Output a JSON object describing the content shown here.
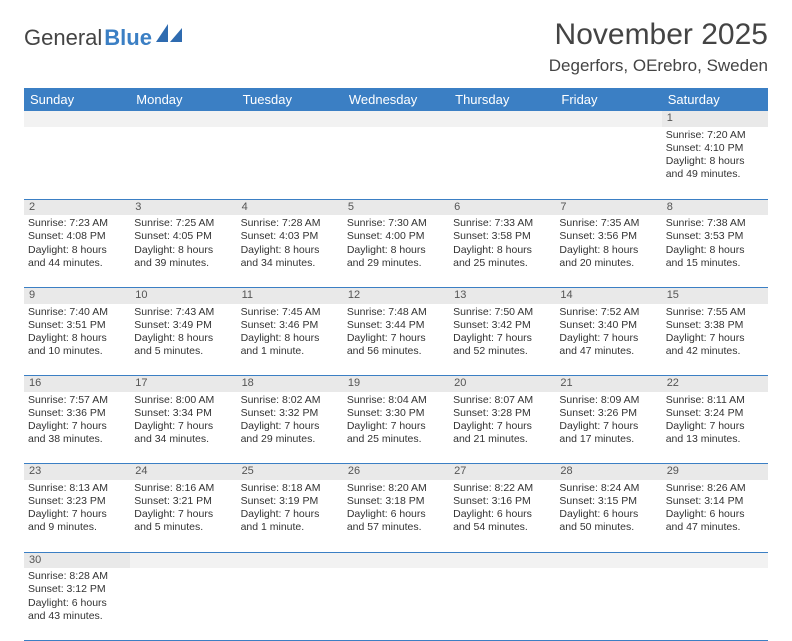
{
  "brand": {
    "part1": "General",
    "part2": "Blue"
  },
  "title": "November 2025",
  "location": "Degerfors, OErebro, Sweden",
  "colors": {
    "header_bg": "#3b7fc4",
    "header_text": "#ffffff",
    "daynum_bg": "#e9e9e9",
    "border": "#3b7fc4",
    "text": "#333333",
    "page_bg": "#ffffff"
  },
  "day_headers": [
    "Sunday",
    "Monday",
    "Tuesday",
    "Wednesday",
    "Thursday",
    "Friday",
    "Saturday"
  ],
  "weeks": [
    {
      "nums": [
        "",
        "",
        "",
        "",
        "",
        "",
        "1"
      ],
      "cells": [
        null,
        null,
        null,
        null,
        null,
        null,
        {
          "sunrise": "Sunrise: 7:20 AM",
          "sunset": "Sunset: 4:10 PM",
          "daylight1": "Daylight: 8 hours",
          "daylight2": "and 49 minutes."
        }
      ]
    },
    {
      "nums": [
        "2",
        "3",
        "4",
        "5",
        "6",
        "7",
        "8"
      ],
      "cells": [
        {
          "sunrise": "Sunrise: 7:23 AM",
          "sunset": "Sunset: 4:08 PM",
          "daylight1": "Daylight: 8 hours",
          "daylight2": "and 44 minutes."
        },
        {
          "sunrise": "Sunrise: 7:25 AM",
          "sunset": "Sunset: 4:05 PM",
          "daylight1": "Daylight: 8 hours",
          "daylight2": "and 39 minutes."
        },
        {
          "sunrise": "Sunrise: 7:28 AM",
          "sunset": "Sunset: 4:03 PM",
          "daylight1": "Daylight: 8 hours",
          "daylight2": "and 34 minutes."
        },
        {
          "sunrise": "Sunrise: 7:30 AM",
          "sunset": "Sunset: 4:00 PM",
          "daylight1": "Daylight: 8 hours",
          "daylight2": "and 29 minutes."
        },
        {
          "sunrise": "Sunrise: 7:33 AM",
          "sunset": "Sunset: 3:58 PM",
          "daylight1": "Daylight: 8 hours",
          "daylight2": "and 25 minutes."
        },
        {
          "sunrise": "Sunrise: 7:35 AM",
          "sunset": "Sunset: 3:56 PM",
          "daylight1": "Daylight: 8 hours",
          "daylight2": "and 20 minutes."
        },
        {
          "sunrise": "Sunrise: 7:38 AM",
          "sunset": "Sunset: 3:53 PM",
          "daylight1": "Daylight: 8 hours",
          "daylight2": "and 15 minutes."
        }
      ]
    },
    {
      "nums": [
        "9",
        "10",
        "11",
        "12",
        "13",
        "14",
        "15"
      ],
      "cells": [
        {
          "sunrise": "Sunrise: 7:40 AM",
          "sunset": "Sunset: 3:51 PM",
          "daylight1": "Daylight: 8 hours",
          "daylight2": "and 10 minutes."
        },
        {
          "sunrise": "Sunrise: 7:43 AM",
          "sunset": "Sunset: 3:49 PM",
          "daylight1": "Daylight: 8 hours",
          "daylight2": "and 5 minutes."
        },
        {
          "sunrise": "Sunrise: 7:45 AM",
          "sunset": "Sunset: 3:46 PM",
          "daylight1": "Daylight: 8 hours",
          "daylight2": "and 1 minute."
        },
        {
          "sunrise": "Sunrise: 7:48 AM",
          "sunset": "Sunset: 3:44 PM",
          "daylight1": "Daylight: 7 hours",
          "daylight2": "and 56 minutes."
        },
        {
          "sunrise": "Sunrise: 7:50 AM",
          "sunset": "Sunset: 3:42 PM",
          "daylight1": "Daylight: 7 hours",
          "daylight2": "and 52 minutes."
        },
        {
          "sunrise": "Sunrise: 7:52 AM",
          "sunset": "Sunset: 3:40 PM",
          "daylight1": "Daylight: 7 hours",
          "daylight2": "and 47 minutes."
        },
        {
          "sunrise": "Sunrise: 7:55 AM",
          "sunset": "Sunset: 3:38 PM",
          "daylight1": "Daylight: 7 hours",
          "daylight2": "and 42 minutes."
        }
      ]
    },
    {
      "nums": [
        "16",
        "17",
        "18",
        "19",
        "20",
        "21",
        "22"
      ],
      "cells": [
        {
          "sunrise": "Sunrise: 7:57 AM",
          "sunset": "Sunset: 3:36 PM",
          "daylight1": "Daylight: 7 hours",
          "daylight2": "and 38 minutes."
        },
        {
          "sunrise": "Sunrise: 8:00 AM",
          "sunset": "Sunset: 3:34 PM",
          "daylight1": "Daylight: 7 hours",
          "daylight2": "and 34 minutes."
        },
        {
          "sunrise": "Sunrise: 8:02 AM",
          "sunset": "Sunset: 3:32 PM",
          "daylight1": "Daylight: 7 hours",
          "daylight2": "and 29 minutes."
        },
        {
          "sunrise": "Sunrise: 8:04 AM",
          "sunset": "Sunset: 3:30 PM",
          "daylight1": "Daylight: 7 hours",
          "daylight2": "and 25 minutes."
        },
        {
          "sunrise": "Sunrise: 8:07 AM",
          "sunset": "Sunset: 3:28 PM",
          "daylight1": "Daylight: 7 hours",
          "daylight2": "and 21 minutes."
        },
        {
          "sunrise": "Sunrise: 8:09 AM",
          "sunset": "Sunset: 3:26 PM",
          "daylight1": "Daylight: 7 hours",
          "daylight2": "and 17 minutes."
        },
        {
          "sunrise": "Sunrise: 8:11 AM",
          "sunset": "Sunset: 3:24 PM",
          "daylight1": "Daylight: 7 hours",
          "daylight2": "and 13 minutes."
        }
      ]
    },
    {
      "nums": [
        "23",
        "24",
        "25",
        "26",
        "27",
        "28",
        "29"
      ],
      "cells": [
        {
          "sunrise": "Sunrise: 8:13 AM",
          "sunset": "Sunset: 3:23 PM",
          "daylight1": "Daylight: 7 hours",
          "daylight2": "and 9 minutes."
        },
        {
          "sunrise": "Sunrise: 8:16 AM",
          "sunset": "Sunset: 3:21 PM",
          "daylight1": "Daylight: 7 hours",
          "daylight2": "and 5 minutes."
        },
        {
          "sunrise": "Sunrise: 8:18 AM",
          "sunset": "Sunset: 3:19 PM",
          "daylight1": "Daylight: 7 hours",
          "daylight2": "and 1 minute."
        },
        {
          "sunrise": "Sunrise: 8:20 AM",
          "sunset": "Sunset: 3:18 PM",
          "daylight1": "Daylight: 6 hours",
          "daylight2": "and 57 minutes."
        },
        {
          "sunrise": "Sunrise: 8:22 AM",
          "sunset": "Sunset: 3:16 PM",
          "daylight1": "Daylight: 6 hours",
          "daylight2": "and 54 minutes."
        },
        {
          "sunrise": "Sunrise: 8:24 AM",
          "sunset": "Sunset: 3:15 PM",
          "daylight1": "Daylight: 6 hours",
          "daylight2": "and 50 minutes."
        },
        {
          "sunrise": "Sunrise: 8:26 AM",
          "sunset": "Sunset: 3:14 PM",
          "daylight1": "Daylight: 6 hours",
          "daylight2": "and 47 minutes."
        }
      ]
    },
    {
      "nums": [
        "30",
        "",
        "",
        "",
        "",
        "",
        ""
      ],
      "cells": [
        {
          "sunrise": "Sunrise: 8:28 AM",
          "sunset": "Sunset: 3:12 PM",
          "daylight1": "Daylight: 6 hours",
          "daylight2": "and 43 minutes."
        },
        null,
        null,
        null,
        null,
        null,
        null
      ]
    }
  ]
}
